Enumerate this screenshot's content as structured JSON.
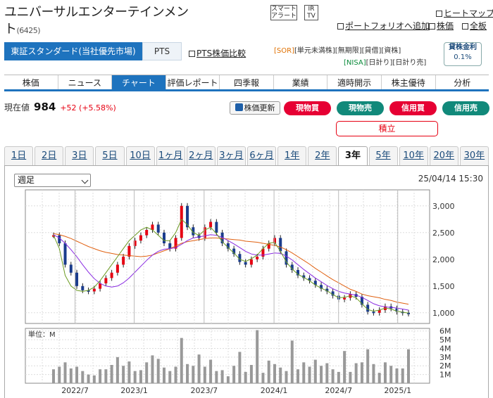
{
  "header": {
    "company_name": "ユニバーサルエンターテインメント",
    "code": "(6425)",
    "smart_alert": [
      "スマート",
      "アラート"
    ],
    "ir": [
      "IR",
      "TV"
    ],
    "links": [
      "ヒートマップ",
      "ポートフォリオへ追加",
      "株価",
      "全板"
    ]
  },
  "market_tabs": [
    "東証スタンダード(当社優先市場)",
    "PTS"
  ],
  "pts_compare": "PTS株価比較",
  "tags_row1": [
    "[SOR]",
    "[単元未満株]",
    "[無期限]",
    "[貸借]",
    "[資株]"
  ],
  "tags_row2": [
    "[NISA]",
    "[日計り]",
    "[日計り売]"
  ],
  "lending": {
    "label": "貸株金利",
    "value": "0.1%"
  },
  "nav_tabs": [
    "株価",
    "ニュース",
    "チャート",
    "評価レポート",
    "四季報",
    "業績",
    "適時開示",
    "株主優待",
    "分析"
  ],
  "active_nav": 2,
  "price": {
    "label": "現在値",
    "value": "984",
    "change": "+52 (+5.58%)"
  },
  "refresh_label": "株価更新",
  "trade_buttons": [
    {
      "label": "現物買",
      "color": "#e60033"
    },
    {
      "label": "現物売",
      "color": "#11897a"
    },
    {
      "label": "信用買",
      "color": "#e60033"
    },
    {
      "label": "信用売",
      "color": "#11897a"
    }
  ],
  "tsumitate": "積立",
  "periods": [
    "1日",
    "2日",
    "3日",
    "5日",
    "10日",
    "1ヶ月",
    "2ヶ月",
    "3ヶ月",
    "6ヶ月",
    "1年",
    "2年",
    "3年",
    "5年",
    "10年",
    "20年",
    "30年"
  ],
  "active_period": 11,
  "chart_select": "週足",
  "timestamp": "25/04/14 15:30",
  "chart_data": [
    {
      "type": "line",
      "title": "",
      "series": [
        {
          "name": "",
          "values": [
            2450,
            2300,
            1900,
            1750,
            1500,
            1420,
            1400,
            1450,
            1550,
            1650,
            1750,
            1900,
            2050,
            2250,
            2350,
            2450,
            2550,
            2650,
            2500,
            2300,
            2200,
            2400,
            3000,
            2600,
            2450,
            2400,
            2600,
            2700,
            2500,
            2300,
            2200,
            2100,
            1950,
            1900,
            2000,
            2050,
            2200,
            2300,
            2400,
            2150,
            1900,
            1800,
            1700,
            1650,
            1600,
            1520,
            1450,
            1400,
            1320,
            1250,
            1280,
            1350,
            1300,
            1150,
            1020,
            1000,
            1050,
            1120,
            1080,
            1020,
            1000,
            984
          ]
        },
        {
          "name": "",
          "values": [
            2480,
            2460,
            2430,
            2390,
            2340,
            2290,
            2240,
            2200,
            2160,
            2130,
            2110,
            2090,
            2080,
            2070,
            2060,
            2050,
            2060,
            2080,
            2120,
            2160,
            2200,
            2250,
            2300,
            2330,
            2350,
            2370,
            2390,
            2400,
            2400,
            2390,
            2380,
            2370,
            2360,
            2340,
            2330,
            2320,
            2300,
            2280,
            2260,
            2230,
            2180,
            2120,
            2050,
            1980,
            1910,
            1830,
            1760,
            1690,
            1620,
            1560,
            1500,
            1440,
            1400,
            1350,
            1320,
            1300,
            1280,
            1250,
            1230,
            1200,
            1180,
            1160
          ]
        },
        {
          "name": "",
          "values": [
            2460,
            2400,
            2300,
            2180,
            2050,
            1900,
            1760,
            1640,
            1550,
            1500,
            1480,
            1500,
            1560,
            1650,
            1760,
            1870,
            1980,
            2080,
            2150,
            2190,
            2200,
            2220,
            2280,
            2350,
            2400,
            2420,
            2440,
            2460,
            2450,
            2410,
            2350,
            2290,
            2220,
            2150,
            2100,
            2080,
            2080,
            2100,
            2120,
            2110,
            2060,
            1990,
            1900,
            1810,
            1730,
            1650,
            1580,
            1510,
            1450,
            1400,
            1370,
            1350,
            1330,
            1290,
            1230,
            1170,
            1130,
            1110,
            1100,
            1090,
            1070,
            1050
          ]
        },
        {
          "name": "",
          "values": [
            2450,
            2200,
            1700,
            1500,
            1420,
            1400,
            1420,
            1480,
            1600,
            1750,
            1900,
            2050,
            2200,
            2350,
            2450,
            2550,
            2600,
            2550,
            2450,
            2350,
            2350,
            2500,
            2750,
            2650,
            2500,
            2450,
            2550,
            2600,
            2480,
            2330,
            2220,
            2120,
            2000,
            1960,
            2010,
            2080,
            2200,
            2300,
            2320,
            2150,
            1950,
            1820,
            1720,
            1660,
            1600,
            1520,
            1460,
            1410,
            1340,
            1280,
            1290,
            1320,
            1280,
            1170,
            1060,
            1030,
            1050,
            1090,
            1070,
            1030,
            1010,
            995
          ]
        }
      ],
      "ylim": [
        800,
        3300
      ],
      "yticks": [
        "3,000",
        "2,500",
        "2,000",
        "1,500",
        "1,000"
      ],
      "ytick_values": [
        3000,
        2500,
        2000,
        1500,
        1000
      ]
    },
    {
      "type": "bar",
      "unit_label": "単位：M",
      "values": [
        1.6,
        1.9,
        2.4,
        1.7,
        1.9,
        1.4,
        1.0,
        0.9,
        1.6,
        1.6,
        2.1,
        3.0,
        2.0,
        2.5,
        1.4,
        1.5,
        2.4,
        3.2,
        2.8,
        1.8,
        1.4,
        1.9,
        5.2,
        2.2,
        2.0,
        3.3,
        1.9,
        2.7,
        1.4,
        1.5,
        0.8,
        2.0,
        3.6,
        1.3,
        2.1,
        6.1,
        1.2,
        2.6,
        2.2,
        1.8,
        1.4,
        4.9,
        1.6,
        2.4,
        1.9,
        2.7,
        2.0,
        2.3,
        1.6,
        1.3,
        3.7,
        1.3,
        2.3,
        2.4,
        3.9,
        2.2,
        1.2,
        2.4,
        2.0,
        1.7,
        1.7,
        3.9
      ],
      "ylim": [
        0,
        6.3
      ],
      "yticks": [
        "6M",
        "5M",
        "4M",
        "3M",
        "2M",
        "1M"
      ],
      "ytick_values": [
        6,
        5,
        4,
        3,
        2,
        1
      ],
      "xticks": [
        "2022/7",
        "2023/1",
        "2023/7",
        "2024/1",
        "2024/7",
        "2025/1"
      ],
      "xtick_index": [
        4,
        15,
        28,
        41,
        53,
        64
      ]
    }
  ]
}
